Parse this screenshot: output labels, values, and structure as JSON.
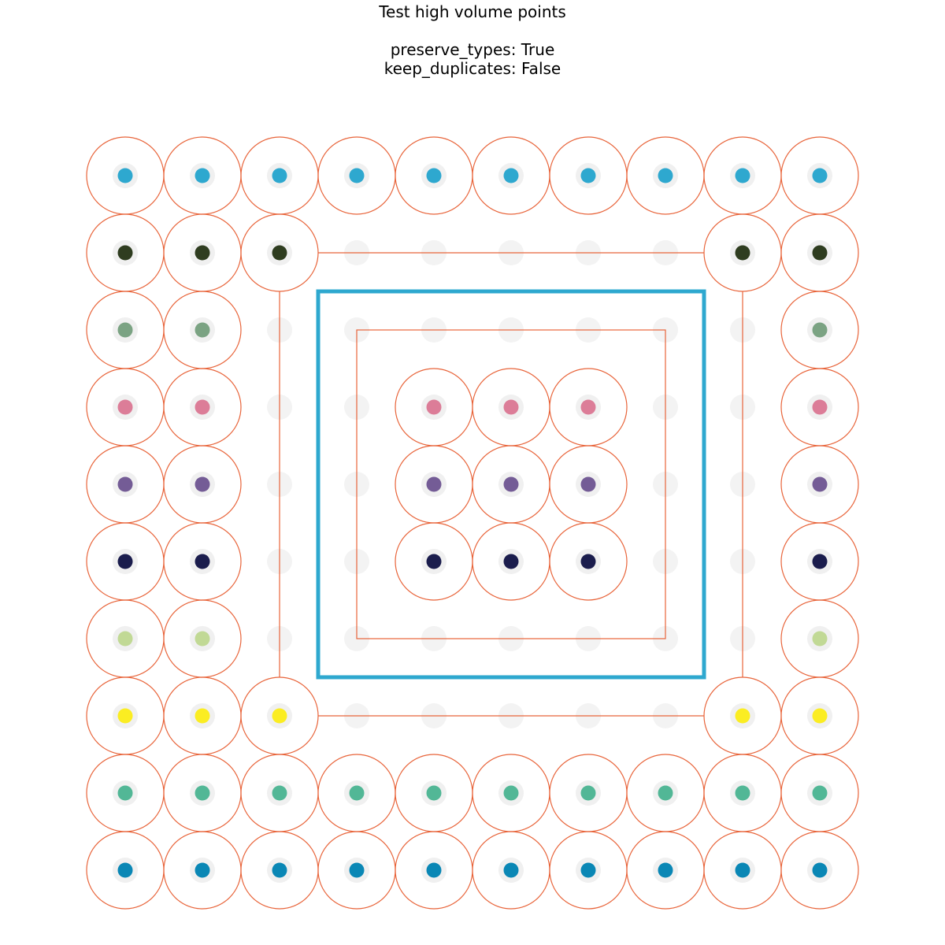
{
  "title": "Test high volume points",
  "subtitle_lines": [
    "preserve_types: True",
    "keep_duplicates: False"
  ],
  "colors": {
    "circle_outline": "#e8643a",
    "inner_box": "#2ea8cf",
    "ghost_point": "#f3f3f3",
    "point_halo": "#f0f0f0"
  },
  "chart_data": {
    "type": "scatter",
    "grid_size": 10,
    "row_colors": [
      "#2ea8cf",
      "#2f3d20",
      "#7ba383",
      "#dc7d98",
      "#745c96",
      "#1b1d4d",
      "#c1d995",
      "#fbed22",
      "#52b796",
      "#0a87b5"
    ],
    "points": [
      [
        1,
        1,
        1,
        1,
        1,
        1,
        1,
        1,
        1,
        1
      ],
      [
        1,
        1,
        1,
        0,
        0,
        0,
        0,
        0,
        1,
        1
      ],
      [
        1,
        1,
        0,
        0,
        0,
        0,
        0,
        0,
        0,
        1
      ],
      [
        1,
        1,
        0,
        0,
        1,
        1,
        1,
        0,
        0,
        1
      ],
      [
        1,
        1,
        0,
        0,
        1,
        1,
        1,
        0,
        0,
        1
      ],
      [
        1,
        1,
        0,
        0,
        1,
        1,
        1,
        0,
        0,
        1
      ],
      [
        1,
        1,
        0,
        0,
        0,
        0,
        0,
        0,
        0,
        1
      ],
      [
        1,
        1,
        1,
        0,
        0,
        0,
        0,
        0,
        1,
        1
      ],
      [
        1,
        1,
        1,
        1,
        1,
        1,
        1,
        1,
        1,
        1
      ],
      [
        1,
        1,
        1,
        1,
        1,
        1,
        1,
        1,
        1,
        1
      ]
    ]
  }
}
